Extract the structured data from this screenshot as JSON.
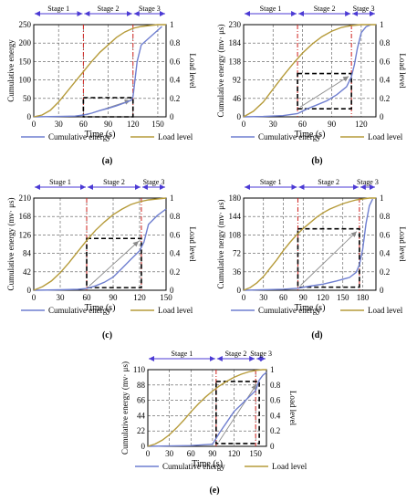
{
  "colors": {
    "energy": "#6f7fd0",
    "load": "#b69b3a",
    "stage_arrow": "#4b3ad4",
    "stage_line": "#d0201c",
    "box": "#000000",
    "grid": "#555555"
  },
  "chart_data": [
    {
      "panel": "(a)",
      "type": "line",
      "xlabel": "Time (s)",
      "ylabel": "Cumulative energy",
      "y2label": "Load level",
      "xlim": [
        0,
        160
      ],
      "ylim": [
        0,
        250
      ],
      "y2lim": [
        0,
        1
      ],
      "xticks": [
        "0",
        "30",
        "60",
        "90",
        "120",
        "150"
      ],
      "yticks": [
        "0",
        "50",
        "100",
        "150",
        "200",
        "250"
      ],
      "y2ticks": [
        "0",
        "0.2",
        "0.4",
        "0.6",
        "0.8",
        "1"
      ],
      "stages": [
        {
          "label": "Stage 1",
          "from": 0,
          "to": 60
        },
        {
          "label": "Stage 2",
          "from": 60,
          "to": 120
        },
        {
          "label": "Stage 3",
          "from": 120,
          "to": 160
        }
      ],
      "stage_lines": [
        60,
        120
      ],
      "box": {
        "x0": 60,
        "x1": 120,
        "y0": 0,
        "y1": 52
      },
      "series": [
        {
          "name": "Cumulative energy",
          "axis": "left",
          "x": [
            0,
            30,
            50,
            60,
            70,
            80,
            90,
            100,
            110,
            118,
            120,
            125,
            130,
            140,
            150,
            155
          ],
          "y": [
            0,
            1,
            2,
            5,
            10,
            17,
            23,
            30,
            38,
            45,
            55,
            150,
            195,
            215,
            235,
            245
          ]
        },
        {
          "name": "Load level",
          "axis": "right",
          "x": [
            0,
            10,
            20,
            30,
            40,
            50,
            60,
            70,
            80,
            90,
            100,
            110,
            120,
            130,
            140,
            150,
            160
          ],
          "y": [
            0,
            0.02,
            0.07,
            0.16,
            0.27,
            0.38,
            0.49,
            0.6,
            0.7,
            0.78,
            0.86,
            0.92,
            0.96,
            0.98,
            0.99,
            1.0,
            1.0
          ]
        }
      ],
      "legend": [
        "Cumulative energy",
        "Load level"
      ]
    },
    {
      "panel": "(b)",
      "type": "line",
      "xlabel": "Time (s)",
      "ylabel": "Cumulative energy (mv· μs)",
      "y2label": "Load level",
      "xlim": [
        0,
        135
      ],
      "ylim": [
        0,
        230
      ],
      "y2lim": [
        0,
        1
      ],
      "xticks": [
        "0",
        "30",
        "60",
        "90",
        "120"
      ],
      "yticks": [
        "0",
        "46",
        "92",
        "138",
        "184",
        "230"
      ],
      "y2ticks": [
        "0",
        "0.2",
        "0.4",
        "0.6",
        "0.8",
        "1"
      ],
      "stages": [
        {
          "label": "Stage 1",
          "from": 0,
          "to": 55
        },
        {
          "label": "Stage 2",
          "from": 55,
          "to": 110
        },
        {
          "label": "Stage 3",
          "from": 110,
          "to": 135
        }
      ],
      "stage_lines": [
        55,
        110
      ],
      "box": {
        "x0": 55,
        "x1": 110,
        "y0": 20,
        "y1": 108
      },
      "series": [
        {
          "name": "Cumulative energy",
          "axis": "left",
          "x": [
            0,
            20,
            40,
            55,
            65,
            75,
            85,
            95,
            105,
            110,
            113,
            116,
            120,
            125,
            130
          ],
          "y": [
            0,
            1,
            3,
            8,
            20,
            30,
            40,
            55,
            75,
            100,
            130,
            170,
            210,
            225,
            230
          ]
        },
        {
          "name": "Load level",
          "axis": "right",
          "x": [
            0,
            10,
            20,
            30,
            40,
            50,
            60,
            70,
            80,
            90,
            100,
            110,
            120,
            135
          ],
          "y": [
            0,
            0.06,
            0.16,
            0.3,
            0.44,
            0.57,
            0.69,
            0.79,
            0.87,
            0.93,
            0.97,
            0.99,
            1.0,
            1.0
          ]
        }
      ],
      "legend": [
        "Cumulative energy",
        "Load level"
      ]
    },
    {
      "panel": "(c)",
      "type": "line",
      "xlabel": "Time (s)",
      "ylabel": "Cumulative energy (mv· μs)",
      "y2label": "Load level",
      "xlim": [
        0,
        150
      ],
      "ylim": [
        0,
        210
      ],
      "y2lim": [
        0,
        1
      ],
      "xticks": [
        "0",
        "30",
        "60",
        "90",
        "120",
        "150"
      ],
      "yticks": [
        "0",
        "42",
        "84",
        "126",
        "168",
        "210"
      ],
      "y2ticks": [
        "0",
        "0.2",
        "0.4",
        "0.6",
        "0.8",
        "1"
      ],
      "stages": [
        {
          "label": "Stage 1",
          "from": 0,
          "to": 60
        },
        {
          "label": "Stage 2",
          "from": 60,
          "to": 122
        },
        {
          "label": "Stage 3",
          "from": 122,
          "to": 150
        }
      ],
      "stage_lines": [
        60,
        122
      ],
      "box": {
        "x0": 60,
        "x1": 122,
        "y0": 6,
        "y1": 118
      },
      "series": [
        {
          "name": "Cumulative energy",
          "axis": "left",
          "x": [
            0,
            30,
            50,
            60,
            70,
            80,
            90,
            100,
            110,
            120,
            125,
            130,
            140,
            150
          ],
          "y": [
            0,
            1,
            2,
            4,
            10,
            18,
            30,
            50,
            70,
            90,
            110,
            150,
            170,
            185
          ]
        },
        {
          "name": "Load level",
          "axis": "right",
          "x": [
            0,
            10,
            20,
            30,
            40,
            50,
            60,
            70,
            80,
            90,
            100,
            110,
            120,
            130,
            140,
            150
          ],
          "y": [
            0,
            0.04,
            0.1,
            0.19,
            0.3,
            0.42,
            0.54,
            0.65,
            0.74,
            0.82,
            0.88,
            0.93,
            0.96,
            0.98,
            0.99,
            1.0
          ]
        }
      ],
      "legend": [
        "Cumulative energy",
        "Load level"
      ]
    },
    {
      "panel": "(d)",
      "type": "line",
      "xlabel": "Time (s)",
      "ylabel": "Cumulative nergy (mv· μs)",
      "y2label": "Load level",
      "xlim": [
        0,
        200
      ],
      "ylim": [
        0,
        180
      ],
      "y2lim": [
        0,
        1
      ],
      "xticks": [
        "0",
        "30",
        "60",
        "90",
        "120",
        "150",
        "180"
      ],
      "yticks": [
        "0",
        "36",
        "72",
        "108",
        "144",
        "180"
      ],
      "y2ticks": [
        "0",
        "0.2",
        "0.4",
        "0.6",
        "0.8",
        "1"
      ],
      "stages": [
        {
          "label": "Stage 1",
          "from": 0,
          "to": 82
        },
        {
          "label": "Stage 2",
          "from": 82,
          "to": 175
        },
        {
          "label": "Stage 3",
          "from": 175,
          "to": 200
        }
      ],
      "stage_lines": [
        82,
        175
      ],
      "box": {
        "x0": 82,
        "x1": 175,
        "y0": 6,
        "y1": 120
      },
      "series": [
        {
          "name": "Cumulative energy",
          "axis": "left",
          "x": [
            0,
            30,
            60,
            82,
            100,
            120,
            140,
            160,
            170,
            175,
            180,
            185,
            190,
            195
          ],
          "y": [
            0,
            1,
            2,
            4,
            8,
            12,
            18,
            25,
            35,
            50,
            80,
            130,
            165,
            178
          ]
        },
        {
          "name": "Load level",
          "axis": "right",
          "x": [
            0,
            10,
            20,
            30,
            40,
            50,
            60,
            70,
            80,
            90,
            100,
            110,
            120,
            130,
            140,
            150,
            160,
            170,
            180,
            190,
            200
          ],
          "y": [
            0,
            0.03,
            0.08,
            0.15,
            0.24,
            0.33,
            0.43,
            0.52,
            0.6,
            0.67,
            0.73,
            0.79,
            0.84,
            0.88,
            0.91,
            0.94,
            0.96,
            0.98,
            0.99,
            1.0,
            1.0
          ]
        }
      ],
      "legend": [
        "Cumulative energy",
        "Load level"
      ]
    },
    {
      "panel": "(e)",
      "type": "line",
      "xlabel": "Time (s)",
      "ylabel": "Cumulative energy (mv· μs)",
      "y2label": "Load level",
      "xlim": [
        0,
        165
      ],
      "ylim": [
        0,
        110
      ],
      "y2lim": [
        0,
        1
      ],
      "xticks": [
        "0",
        "30",
        "60",
        "90",
        "120",
        "150"
      ],
      "yticks": [
        "0",
        "22",
        "44",
        "66",
        "88",
        "110"
      ],
      "y2ticks": [
        "0",
        "0.2",
        "0.4",
        "0.6",
        "0.8",
        "1"
      ],
      "stages": [
        {
          "label": "Stage 1",
          "from": 0,
          "to": 95
        },
        {
          "label": "Stage 2",
          "from": 95,
          "to": 150
        },
        {
          "label": "Stage 3",
          "from": 150,
          "to": 165
        }
      ],
      "stage_lines": [
        95,
        150
      ],
      "box": {
        "x0": 95,
        "x1": 155,
        "y0": 4,
        "y1": 93
      },
      "series": [
        {
          "name": "Cumulative energy",
          "axis": "left",
          "x": [
            0,
            30,
            60,
            90,
            100,
            110,
            120,
            130,
            140,
            150,
            155,
            160,
            165
          ],
          "y": [
            0,
            0.5,
            1,
            3,
            20,
            35,
            50,
            60,
            70,
            80,
            95,
            102,
            106
          ]
        },
        {
          "name": "Load level",
          "axis": "right",
          "x": [
            0,
            10,
            20,
            30,
            40,
            50,
            60,
            70,
            80,
            90,
            100,
            110,
            120,
            130,
            140,
            150,
            160,
            165
          ],
          "y": [
            0,
            0.03,
            0.08,
            0.15,
            0.24,
            0.34,
            0.45,
            0.55,
            0.64,
            0.72,
            0.79,
            0.85,
            0.9,
            0.94,
            0.97,
            0.99,
            1.0,
            1.0
          ]
        }
      ],
      "legend": [
        "Cumulative energy",
        "Load level"
      ]
    }
  ]
}
